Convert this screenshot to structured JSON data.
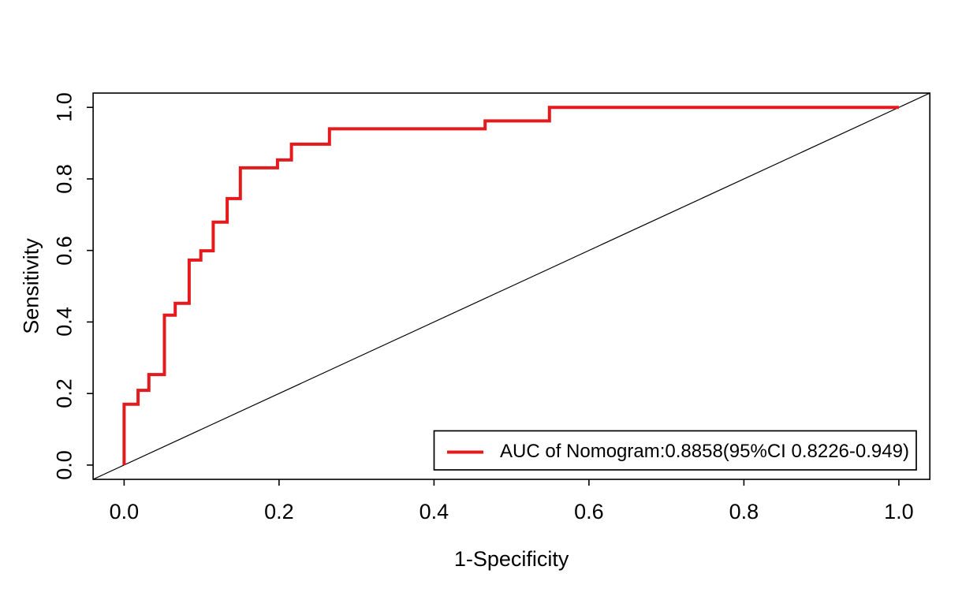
{
  "chart_data": {
    "type": "line",
    "subtype": "roc-step-curve",
    "title": "",
    "xlabel": "1-Specificity",
    "ylabel": "Sensitivity",
    "xlim": [
      -0.04,
      1.04
    ],
    "ylim": [
      -0.04,
      1.04
    ],
    "grid": false,
    "x_ticks": [
      "0.0",
      "0.2",
      "0.4",
      "0.6",
      "0.8",
      "1.0"
    ],
    "y_ticks": [
      "0.0",
      "0.2",
      "0.4",
      "0.6",
      "0.8",
      "1.0"
    ],
    "x_tick_values": [
      0.0,
      0.2,
      0.4,
      0.6,
      0.8,
      1.0
    ],
    "y_tick_values": [
      0.0,
      0.2,
      0.4,
      0.6,
      0.8,
      1.0
    ],
    "legend_position": "bottom-right",
    "series": [
      {
        "name": "AUC of Nomogram:0.8858(95%CI 0.8226-0.949)",
        "color": "#e41a1c",
        "line_width": 4,
        "points": [
          [
            0.0,
            0.0
          ],
          [
            0.0,
            0.17
          ],
          [
            0.018,
            0.17
          ],
          [
            0.018,
            0.209
          ],
          [
            0.032,
            0.209
          ],
          [
            0.032,
            0.253
          ],
          [
            0.052,
            0.253
          ],
          [
            0.052,
            0.419
          ],
          [
            0.066,
            0.419
          ],
          [
            0.066,
            0.452
          ],
          [
            0.084,
            0.452
          ],
          [
            0.084,
            0.573
          ],
          [
            0.099,
            0.573
          ],
          [
            0.099,
            0.599
          ],
          [
            0.115,
            0.599
          ],
          [
            0.115,
            0.679
          ],
          [
            0.133,
            0.679
          ],
          [
            0.133,
            0.745
          ],
          [
            0.15,
            0.745
          ],
          [
            0.15,
            0.831
          ],
          [
            0.198,
            0.831
          ],
          [
            0.198,
            0.853
          ],
          [
            0.216,
            0.853
          ],
          [
            0.216,
            0.897
          ],
          [
            0.265,
            0.897
          ],
          [
            0.265,
            0.94
          ],
          [
            0.466,
            0.94
          ],
          [
            0.466,
            0.962
          ],
          [
            0.549,
            0.962
          ],
          [
            0.549,
            1.0
          ],
          [
            1.0,
            1.0
          ]
        ]
      },
      {
        "name": "reference-diagonal",
        "color": "#000000",
        "line_width": 1.2,
        "points": [
          [
            -0.04,
            -0.04
          ],
          [
            1.04,
            1.04
          ]
        ]
      }
    ],
    "auc": 0.8858,
    "ci_95": "0.8226-0.949"
  },
  "legend": {
    "label": "AUC of Nomogram:0.8858(95%CI 0.8226-0.949)"
  },
  "colors": {
    "curve": "#e41a1c",
    "axis": "#000000",
    "background": "#ffffff"
  }
}
